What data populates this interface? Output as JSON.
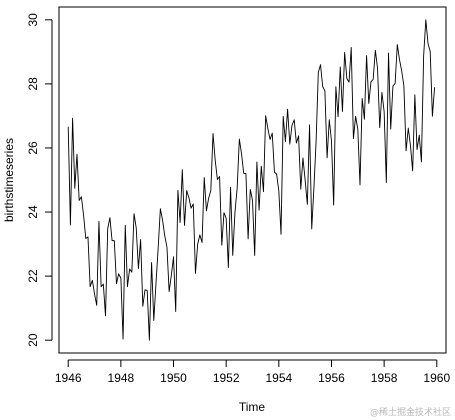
{
  "chart_data": {
    "type": "line",
    "title": "",
    "xlabel": "Time",
    "ylabel": "birthstimeseries",
    "xlim": [
      1945.65,
      1960.35
    ],
    "ylim": [
      19.6,
      30.4
    ],
    "x_ticks": [
      1946,
      1948,
      1950,
      1952,
      1954,
      1956,
      1958,
      1960
    ],
    "x_tick_labels": [
      "1946",
      "1948",
      "1950",
      "1952",
      "1954",
      "1956",
      "1958",
      "1960"
    ],
    "y_ticks": [
      20,
      22,
      24,
      26,
      28,
      30
    ],
    "y_tick_labels": [
      "20",
      "22",
      "24",
      "26",
      "28",
      "30"
    ],
    "grid": false,
    "line_color": "#000000",
    "start": 1946,
    "frequency": 12,
    "values": [
      26.663,
      23.598,
      26.931,
      24.74,
      25.806,
      24.364,
      24.477,
      23.901,
      23.175,
      23.227,
      21.672,
      21.87,
      21.439,
      21.089,
      23.709,
      21.669,
      21.752,
      20.761,
      23.479,
      23.824,
      23.105,
      23.11,
      21.759,
      22.073,
      21.937,
      20.035,
      23.59,
      21.672,
      22.222,
      22.123,
      23.95,
      23.504,
      22.238,
      23.142,
      21.059,
      21.573,
      21.548,
      20.0,
      22.424,
      20.615,
      21.761,
      22.874,
      24.104,
      23.748,
      23.262,
      22.907,
      21.519,
      22.025,
      22.604,
      20.894,
      24.677,
      23.673,
      25.32,
      23.583,
      24.671,
      24.454,
      24.122,
      24.252,
      22.084,
      22.991,
      23.287,
      23.049,
      25.076,
      24.037,
      24.43,
      24.667,
      26.451,
      25.618,
      25.014,
      25.11,
      22.964,
      23.981,
      23.798,
      22.27,
      24.775,
      22.646,
      23.988,
      24.737,
      26.276,
      25.816,
      25.21,
      25.199,
      23.162,
      24.707,
      24.364,
      22.644,
      25.565,
      24.062,
      25.431,
      24.635,
      27.009,
      26.606,
      26.268,
      26.462,
      25.246,
      25.18,
      24.657,
      23.304,
      26.982,
      26.199,
      27.21,
      26.122,
      26.706,
      26.878,
      26.152,
      26.379,
      24.712,
      25.688,
      24.99,
      24.239,
      26.721,
      23.475,
      24.767,
      26.219,
      28.361,
      28.599,
      27.914,
      27.784,
      25.693,
      26.881,
      26.217,
      24.218,
      27.914,
      26.975,
      28.527,
      27.139,
      28.982,
      28.169,
      28.056,
      29.136,
      26.291,
      26.987,
      26.589,
      24.848,
      27.543,
      26.896,
      28.878,
      27.39,
      28.065,
      28.141,
      29.048,
      28.484,
      26.634,
      27.735,
      27.132,
      24.924,
      28.963,
      26.589,
      27.931,
      28.009,
      29.229,
      28.759,
      28.405,
      27.945,
      25.912,
      26.619,
      26.076,
      25.286,
      27.66,
      25.951,
      26.398,
      25.565,
      28.865,
      30.0,
      29.261,
      29.012,
      26.992,
      27.897
    ]
  }
}
